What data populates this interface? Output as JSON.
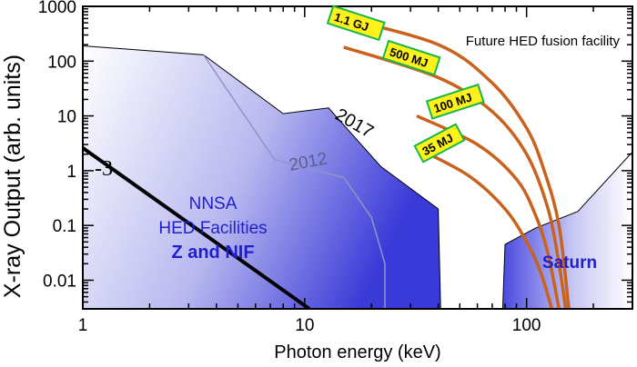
{
  "chart_data": {
    "type": "area",
    "xlabel": "Photon energy (keV)",
    "ylabel": "X-ray Output (arb. units)",
    "xscale": "log",
    "yscale": "log",
    "xlim": [
      1,
      300
    ],
    "ylim": [
      0.003,
      1000
    ],
    "x_ticks": [
      {
        "value": 1,
        "label": "1"
      },
      {
        "value": 10,
        "label": "10"
      },
      {
        "value": 100,
        "label": "100"
      }
    ],
    "y_ticks": [
      {
        "value": 1000,
        "label": "1000"
      },
      {
        "value": 100,
        "label": "100"
      },
      {
        "value": 10,
        "label": "10"
      },
      {
        "value": 1,
        "label": "1"
      },
      {
        "value": 0.1,
        "label": "0.1"
      },
      {
        "value": 0.01,
        "label": "0.01"
      }
    ],
    "annotations": {
      "future_facility": "Future HED fusion facility",
      "year_2017": "2017",
      "year_2012": "2012",
      "slope": "-3",
      "nnsa_line1": "NNSA",
      "nnsa_line2": "HED Facilities",
      "z_and_nif": "Z and NIF",
      "saturn": "Saturn"
    },
    "colors": {
      "region_fill": "#3a3ad8",
      "region_edge": "#000000",
      "boundary_2012": "#8f95c9",
      "future_curves": "#c8621c",
      "label_box_fill": "#fff21a",
      "label_box_border": "#19b44b",
      "blue_text": "#1f1fcf"
    },
    "series": [
      {
        "name": "2017",
        "points": [
          [
            1,
            190
          ],
          [
            3.5,
            130
          ],
          [
            8,
            11
          ],
          [
            12.8,
            14
          ],
          [
            22,
            1.2
          ],
          [
            40,
            0.2
          ],
          [
            41,
            0.003
          ]
        ]
      },
      {
        "name": "2012",
        "points": [
          [
            3.5,
            130
          ],
          [
            7.3,
            1.6
          ],
          [
            15,
            0.75
          ],
          [
            20,
            0.14
          ],
          [
            23,
            0.02
          ],
          [
            23,
            0.003
          ]
        ]
      },
      {
        "name": "Saturn",
        "points": [
          [
            78,
            0.003
          ],
          [
            80,
            0.045
          ],
          [
            110,
            0.09
          ],
          [
            170,
            0.18
          ],
          [
            300,
            2.2
          ],
          [
            300,
            0.003
          ]
        ]
      },
      {
        "name": "-3",
        "points": [
          [
            1,
            2.6
          ],
          [
            10.5,
            0.003
          ]
        ]
      }
    ],
    "fusion_curves": [
      {
        "name": "1.1 GJ",
        "points": [
          [
            14,
            650
          ],
          [
            40,
            200
          ],
          [
            70,
            40
          ],
          [
            100,
            6
          ],
          [
            120,
            1
          ],
          [
            140,
            0.1
          ],
          [
            155,
            0.003
          ]
        ]
      },
      {
        "name": "500 MJ",
        "points": [
          [
            15,
            180
          ],
          [
            40,
            50
          ],
          [
            70,
            12
          ],
          [
            100,
            2
          ],
          [
            125,
            0.2
          ],
          [
            140,
            0.02
          ],
          [
            150,
            0.003
          ]
        ]
      },
      {
        "name": "100 MJ",
        "points": [
          [
            32,
            10
          ],
          [
            60,
            3
          ],
          [
            90,
            0.7
          ],
          [
            110,
            0.15
          ],
          [
            125,
            0.03
          ],
          [
            140,
            0.003
          ]
        ]
      },
      {
        "name": "35 MJ",
        "points": [
          [
            32,
            2.6
          ],
          [
            55,
            0.8
          ],
          [
            80,
            0.2
          ],
          [
            100,
            0.05
          ],
          [
            115,
            0.015
          ],
          [
            130,
            0.003
          ]
        ]
      }
    ],
    "fusion_labels": [
      {
        "text": "1.1 GJ",
        "x": 13.5,
        "y": 650,
        "angle": 18
      },
      {
        "text": "500 MJ",
        "x": 24,
        "y": 150,
        "angle": 18
      },
      {
        "text": "100 MJ",
        "x": 38,
        "y": 13,
        "angle": -18
      },
      {
        "text": "35 MJ",
        "x": 34,
        "y": 2.1,
        "angle": -28
      }
    ],
    "grid": false,
    "legend": "none"
  }
}
